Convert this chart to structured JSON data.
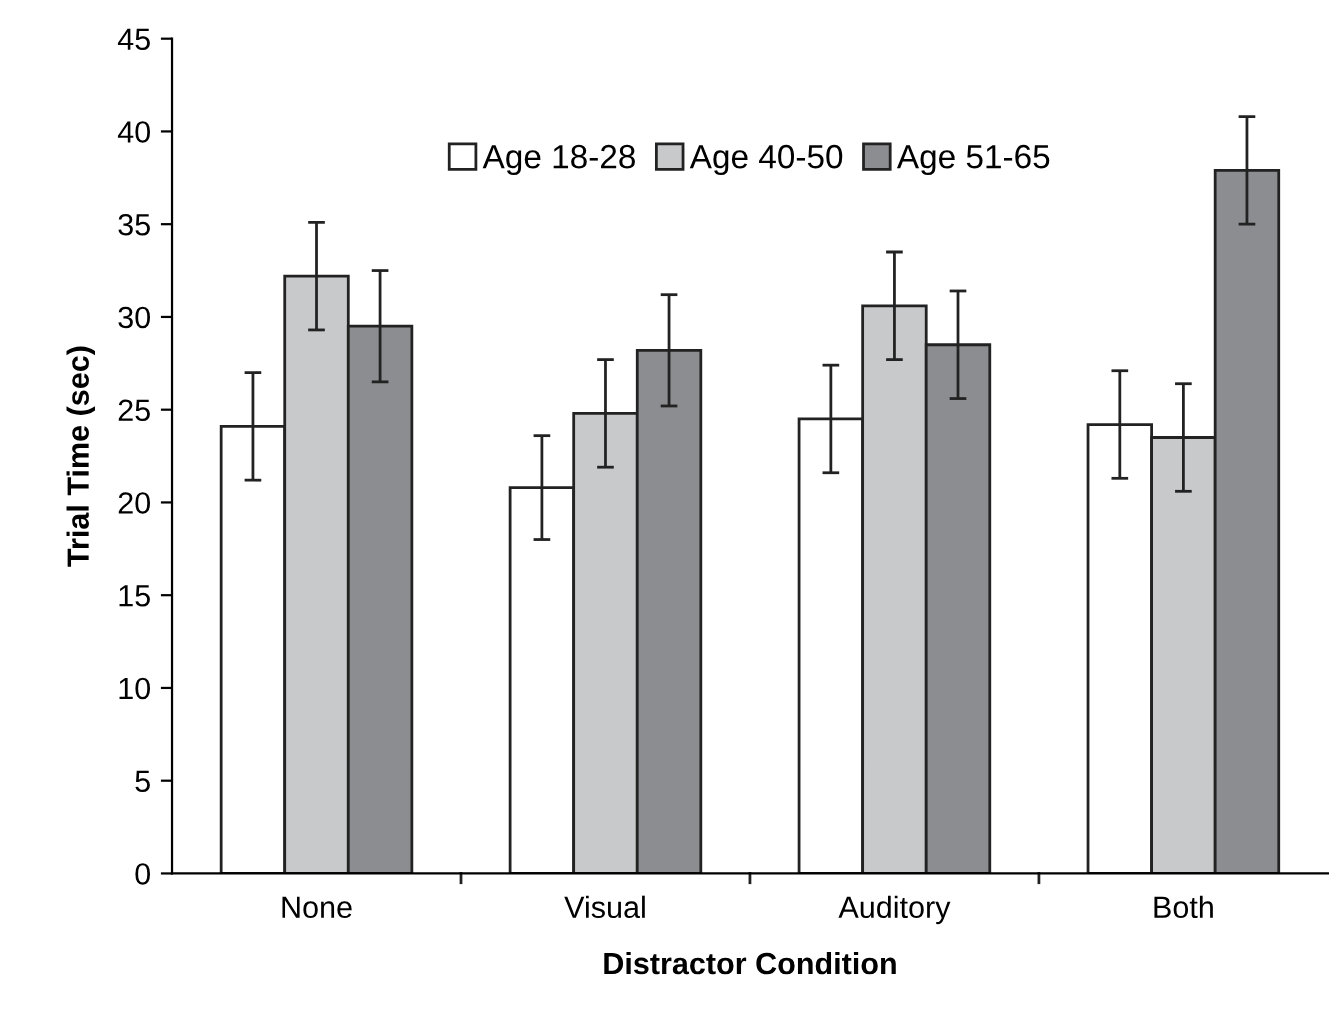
{
  "chart_data": {
    "type": "bar",
    "xlabel": "Distractor Condition",
    "ylabel": "Trial Time (sec)",
    "categories": [
      "None",
      "Visual",
      "Auditory",
      "Both"
    ],
    "series": [
      {
        "name": "Age 18-28",
        "color": "#ffffff",
        "values": [
          24.1,
          20.8,
          24.5,
          24.2
        ],
        "errors": [
          2.9,
          2.8,
          2.9,
          2.9
        ]
      },
      {
        "name": "Age 40-50",
        "color": "#c8c9cb",
        "values": [
          32.2,
          24.8,
          30.6,
          23.5
        ],
        "errors": [
          2.9,
          2.9,
          2.9,
          2.9
        ]
      },
      {
        "name": "Age 51-65",
        "color": "#8c8d91",
        "values": [
          29.5,
          28.2,
          28.5,
          37.9
        ],
        "errors": [
          3.0,
          3.0,
          2.9,
          2.9
        ]
      }
    ],
    "ylim": [
      0,
      45
    ],
    "yticks": [
      0,
      5,
      10,
      15,
      20,
      25,
      30,
      35,
      40,
      45
    ],
    "grid": false,
    "legend": "top"
  }
}
